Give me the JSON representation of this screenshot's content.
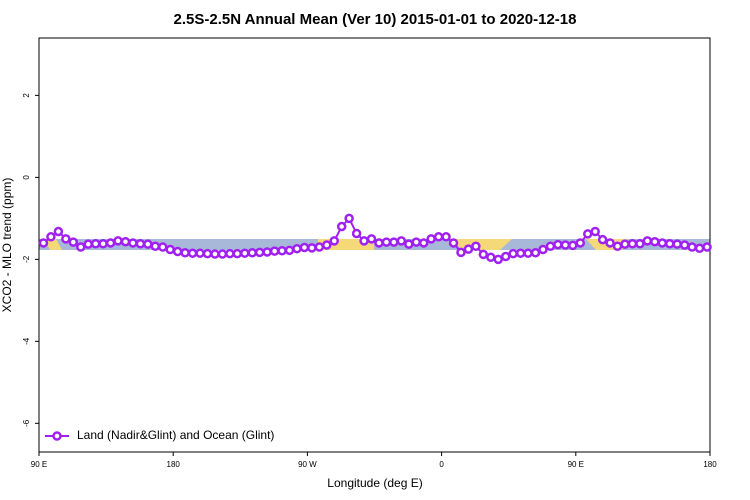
{
  "chart_data": {
    "type": "line",
    "title": "2.5S-2.5N Annual Mean (Ver 10)   2015-01-01 to 2020-12-18",
    "x_label": "Longitude (deg E)",
    "y_label": "XCO2 - MLO trend (ppm)",
    "xlim": [
      90,
      540
    ],
    "ylim": [
      -6.7,
      3.4
    ],
    "xticks": [
      {
        "value": 90,
        "label": "90 E"
      },
      180,
      {
        "value": 270,
        "label": "90 W"
      },
      {
        "value": 360,
        "label": "0"
      },
      {
        "value": 450,
        "label": "90 E"
      },
      {
        "value": 540,
        "label": "180"
      }
    ],
    "yticks": [
      2,
      0,
      -2,
      -4,
      -6
    ],
    "legend": "bottom-left",
    "x": [
      93,
      98,
      103,
      108,
      113,
      118,
      123,
      128,
      133,
      138,
      143,
      148,
      153,
      158,
      163,
      168,
      173,
      178,
      183,
      188,
      193,
      198,
      203,
      208,
      213,
      218,
      223,
      228,
      233,
      238,
      243,
      248,
      253,
      258,
      263,
      268,
      273,
      278,
      283,
      288,
      293,
      298,
      303,
      308,
      313,
      318,
      323,
      328,
      333,
      338,
      343,
      348,
      353,
      358,
      363,
      368,
      373,
      378,
      383,
      388,
      393,
      398,
      403,
      408,
      413,
      418,
      423,
      428,
      433,
      438,
      443,
      448,
      453,
      458,
      463,
      468,
      473,
      478,
      483,
      488,
      493,
      498,
      503,
      508,
      513,
      518,
      523,
      528,
      533,
      538
    ],
    "series": [
      {
        "name": "Land (Nadir&Glint) and Ocean (Glint)",
        "color": "#a020f0",
        "values": [
          -1.6,
          -1.45,
          -1.32,
          -1.5,
          -1.58,
          -1.7,
          -1.63,
          -1.62,
          -1.62,
          -1.6,
          -1.55,
          -1.57,
          -1.6,
          -1.62,
          -1.63,
          -1.68,
          -1.7,
          -1.76,
          -1.81,
          -1.84,
          -1.85,
          -1.85,
          -1.86,
          -1.87,
          -1.87,
          -1.86,
          -1.86,
          -1.85,
          -1.84,
          -1.83,
          -1.82,
          -1.8,
          -1.79,
          -1.78,
          -1.74,
          -1.71,
          -1.72,
          -1.7,
          -1.65,
          -1.55,
          -1.2,
          -1.0,
          -1.37,
          -1.55,
          -1.5,
          -1.6,
          -1.58,
          -1.58,
          -1.55,
          -1.63,
          -1.58,
          -1.6,
          -1.5,
          -1.45,
          -1.45,
          -1.6,
          -1.83,
          -1.75,
          -1.68,
          -1.88,
          -1.95,
          -2.0,
          -1.93,
          -1.86,
          -1.85,
          -1.85,
          -1.84,
          -1.76,
          -1.68,
          -1.64,
          -1.65,
          -1.66,
          -1.6,
          -1.38,
          -1.32,
          -1.52,
          -1.6,
          -1.68,
          -1.63,
          -1.62,
          -1.62,
          -1.55,
          -1.57,
          -1.6,
          -1.62,
          -1.63,
          -1.65,
          -1.7,
          -1.73,
          -1.7
        ]
      }
    ]
  }
}
